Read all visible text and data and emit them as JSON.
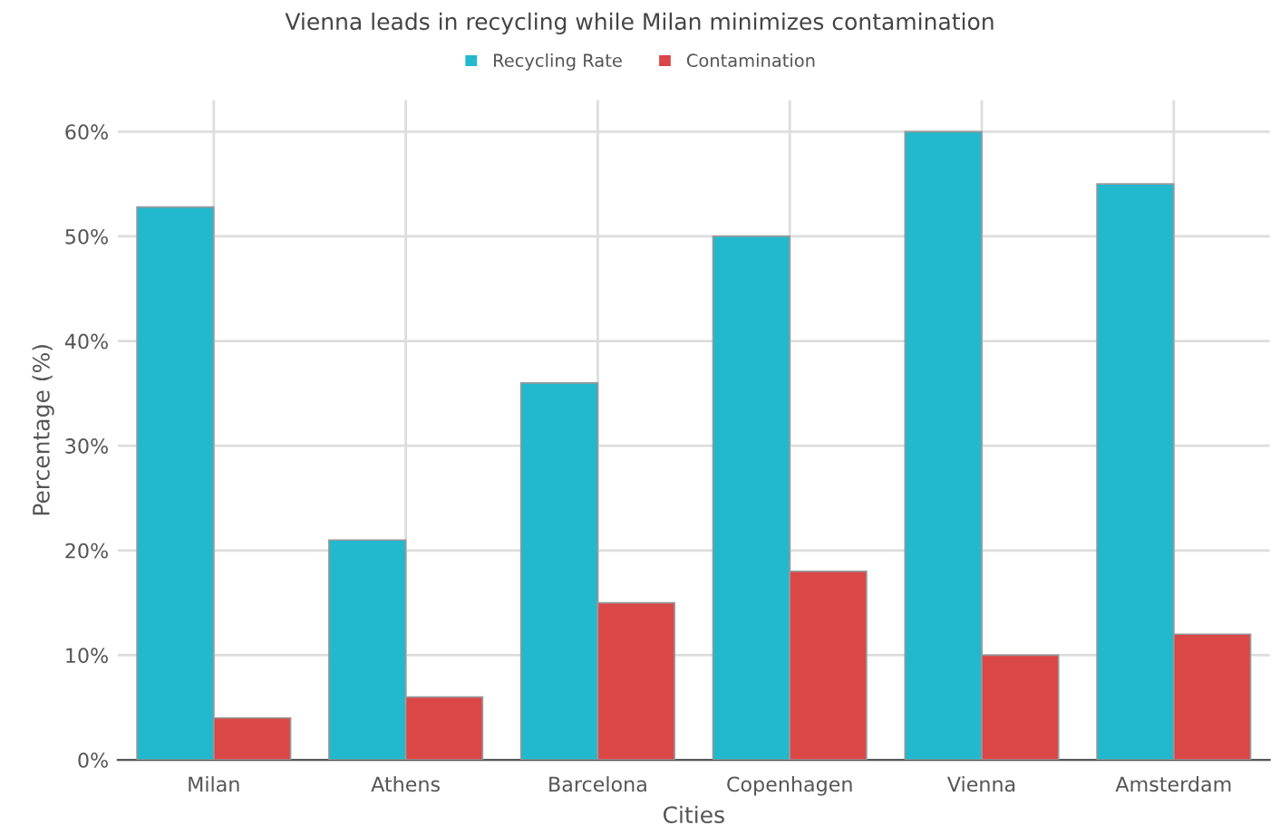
{
  "chart_data": {
    "type": "bar",
    "title": "Vienna leads in recycling while Milan minimizes contamination",
    "xlabel": "Cities",
    "ylabel": "Percentage (%)",
    "categories": [
      "Milan",
      "Athens",
      "Barcelona",
      "Copenhagen",
      "Vienna",
      "Amsterdam"
    ],
    "series": [
      {
        "name": "Recycling Rate",
        "color": "#22b8cd",
        "values": [
          52.8,
          21,
          36,
          50,
          60,
          55
        ]
      },
      {
        "name": "Contamination",
        "color": "#db4647",
        "values": [
          4,
          6,
          15,
          18,
          10,
          12
        ]
      }
    ],
    "ylim": [
      0,
      63
    ],
    "yticks": [
      {
        "value": 0,
        "label": "0%"
      },
      {
        "value": 10,
        "label": "10%"
      },
      {
        "value": 20,
        "label": "20%"
      },
      {
        "value": 30,
        "label": "30%"
      },
      {
        "value": 40,
        "label": "40%"
      },
      {
        "value": 50,
        "label": "50%"
      },
      {
        "value": 60,
        "label": "60%"
      }
    ],
    "grid": true,
    "legend": "top"
  }
}
